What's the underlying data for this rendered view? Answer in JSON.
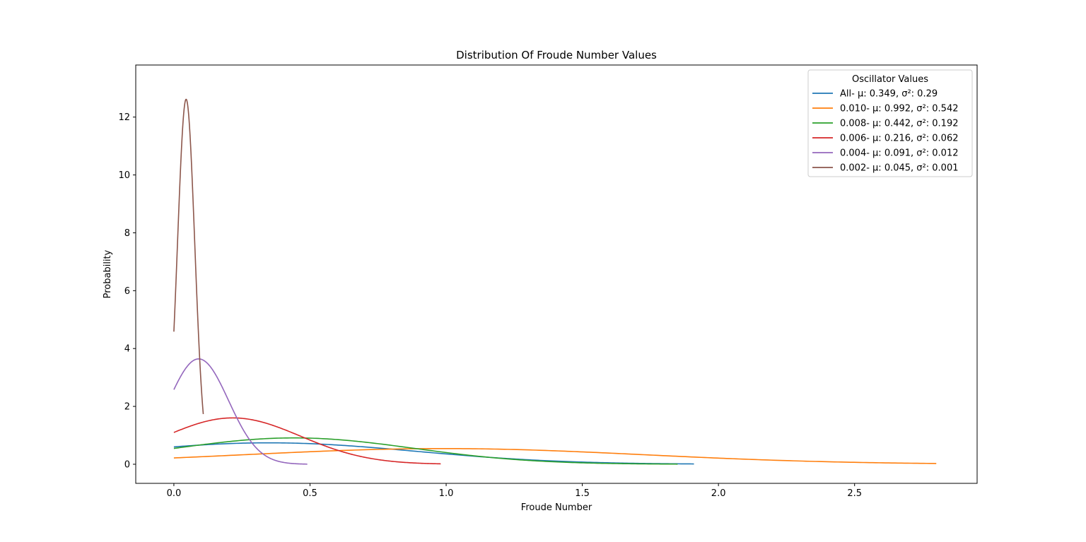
{
  "chart_data": {
    "type": "line",
    "title": "Distribution Of Froude Number Values",
    "xlabel": "Froude Number",
    "ylabel": "Probability",
    "xlim": [
      -0.14,
      2.95
    ],
    "ylim": [
      -0.66,
      13.8
    ],
    "xticks": [
      0.0,
      0.5,
      1.0,
      1.5,
      2.0,
      2.5
    ],
    "xtick_labels": [
      "0.0",
      "0.5",
      "1.0",
      "1.5",
      "2.0",
      "2.5"
    ],
    "yticks": [
      0,
      2,
      4,
      6,
      8,
      10,
      12
    ],
    "ytick_labels": [
      "0",
      "2",
      "4",
      "6",
      "8",
      "10",
      "12"
    ],
    "grid": false,
    "legend_title": "Oscillator Values",
    "legend_position": "top-right",
    "series": [
      {
        "name": "All-  μ: 0.349, σ²: 0.29",
        "color": "#1f77b4",
        "mu": 0.349,
        "var": 0.29,
        "x_range": [
          0.0,
          1.91
        ]
      },
      {
        "name": "0.010-  μ: 0.992, σ²: 0.542",
        "color": "#ff7f0e",
        "mu": 0.992,
        "var": 0.542,
        "x_range": [
          0.0,
          2.8
        ]
      },
      {
        "name": "0.008-  μ: 0.442, σ²: 0.192",
        "color": "#2ca02c",
        "mu": 0.442,
        "var": 0.192,
        "x_range": [
          0.0,
          1.85
        ]
      },
      {
        "name": "0.006-  μ: 0.216, σ²: 0.062",
        "color": "#d62728",
        "mu": 0.216,
        "var": 0.062,
        "x_range": [
          0.0,
          0.98
        ]
      },
      {
        "name": "0.004-  μ: 0.091, σ²: 0.012",
        "color": "#9467bd",
        "mu": 0.091,
        "var": 0.012,
        "x_range": [
          0.0,
          0.49
        ]
      },
      {
        "name": "0.002-  μ: 0.045, σ²: 0.001",
        "color": "#8c564b",
        "mu": 0.045,
        "var": 0.001,
        "x_range": [
          0.0,
          0.108
        ]
      }
    ]
  }
}
